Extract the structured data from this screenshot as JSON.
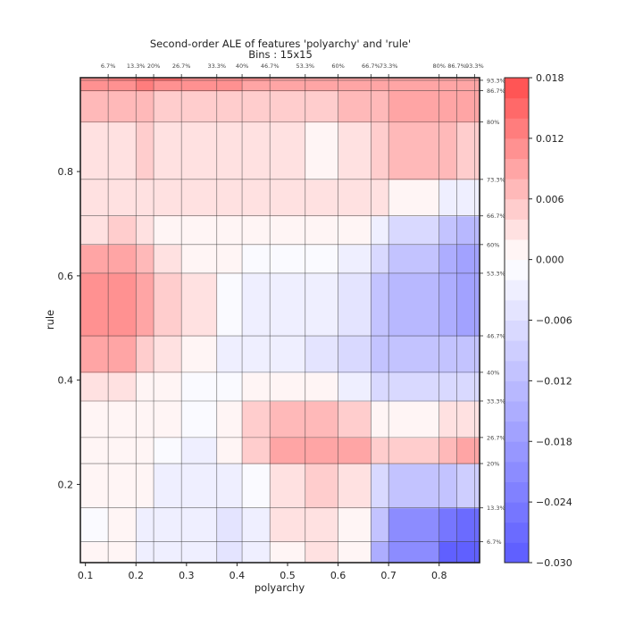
{
  "chart_data": {
    "type": "heatmap",
    "title": "Second-order ALE of features 'polyarchy' and 'rule'",
    "subtitle": "Bins : 15x15",
    "xlabel": "polyarchy",
    "ylabel": "rule",
    "xlim": [
      0.09,
      0.88
    ],
    "ylim": [
      0.05,
      0.98
    ],
    "x_ticks": [
      0.1,
      0.2,
      0.3,
      0.4,
      0.5,
      0.6,
      0.7,
      0.8
    ],
    "x_tick_labels": [
      "0.1",
      "0.2",
      "0.3",
      "0.4",
      "0.5",
      "0.6",
      "0.7",
      "0.8"
    ],
    "y_ticks": [
      0.2,
      0.4,
      0.6,
      0.8
    ],
    "y_tick_labels": [
      "0.2",
      "0.4",
      "0.6",
      "0.8"
    ],
    "x_quantiles": [
      {
        "value": 0.145,
        "label": "6.7%"
      },
      {
        "value": 0.2,
        "label": "13.3%"
      },
      {
        "value": 0.235,
        "label": "20%"
      },
      {
        "value": 0.29,
        "label": "26.7%"
      },
      {
        "value": 0.36,
        "label": "33.3%"
      },
      {
        "value": 0.41,
        "label": "40%"
      },
      {
        "value": 0.465,
        "label": "46.7%"
      },
      {
        "value": 0.535,
        "label": "53.3%"
      },
      {
        "value": 0.6,
        "label": "60%"
      },
      {
        "value": 0.665,
        "label": "66.7%"
      },
      {
        "value": 0.7,
        "label": "73.3%"
      },
      {
        "value": 0.8,
        "label": "80%"
      },
      {
        "value": 0.835,
        "label": "86.7%"
      },
      {
        "value": 0.87,
        "label": "93.3%"
      }
    ],
    "y_quantiles": [
      {
        "value": 0.09,
        "label": "6.7%"
      },
      {
        "value": 0.155,
        "label": "13.3%"
      },
      {
        "value": 0.24,
        "label": "20%"
      },
      {
        "value": 0.29,
        "label": "26.7%"
      },
      {
        "value": 0.36,
        "label": "33.3%"
      },
      {
        "value": 0.415,
        "label": "40%"
      },
      {
        "value": 0.485,
        "label": "46.7%"
      },
      {
        "value": 0.605,
        "label": "53.3%"
      },
      {
        "value": 0.66,
        "label": "60%"
      },
      {
        "value": 0.715,
        "label": "66.7%"
      },
      {
        "value": 0.785,
        "label": "73.3%"
      },
      {
        "value": 0.895,
        "label": "80%"
      },
      {
        "value": 0.955,
        "label": "86.7%"
      },
      {
        "value": 0.975,
        "label": "93.3%"
      }
    ],
    "grid_x": [
      0.09,
      0.145,
      0.2,
      0.235,
      0.29,
      0.36,
      0.41,
      0.465,
      0.535,
      0.6,
      0.665,
      0.7,
      0.8,
      0.835,
      0.87,
      0.88
    ],
    "grid_y": [
      0.05,
      0.09,
      0.155,
      0.24,
      0.29,
      0.36,
      0.415,
      0.485,
      0.605,
      0.66,
      0.715,
      0.785,
      0.895,
      0.955,
      0.975,
      0.98
    ],
    "ale_values": [
      [
        0.0,
        0.0,
        -0.002,
        -0.002,
        -0.004,
        -0.005,
        -0.004,
        0.001,
        0.002,
        0.0,
        -0.015,
        -0.022,
        -0.028,
        -0.03,
        -0.03
      ],
      [
        -0.001,
        0.0,
        -0.002,
        -0.002,
        -0.004,
        -0.005,
        -0.003,
        0.002,
        0.003,
        0.0,
        -0.012,
        -0.02,
        -0.024,
        -0.027,
        -0.027
      ],
      [
        0.0,
        0.001,
        0.0,
        -0.002,
        -0.004,
        -0.003,
        -0.001,
        0.003,
        0.004,
        0.002,
        -0.008,
        -0.01,
        -0.01,
        -0.009,
        -0.009
      ],
      [
        0.0,
        0.001,
        0.0,
        -0.001,
        -0.002,
        0.0,
        0.004,
        0.008,
        0.009,
        0.008,
        0.004,
        0.005,
        0.007,
        0.008,
        0.008
      ],
      [
        0.001,
        0.001,
        0.001,
        0.0,
        -0.001,
        0.001,
        0.004,
        0.007,
        0.007,
        0.005,
        0.001,
        0.001,
        0.002,
        0.002,
        0.002
      ],
      [
        0.002,
        0.003,
        0.001,
        0.0,
        -0.001,
        -0.001,
        0.0,
        0.001,
        0.0,
        -0.003,
        -0.007,
        -0.008,
        -0.008,
        -0.008,
        -0.008
      ],
      [
        0.008,
        0.008,
        0.005,
        0.002,
        0.0,
        -0.002,
        -0.003,
        -0.004,
        -0.005,
        -0.007,
        -0.01,
        -0.012,
        -0.012,
        -0.012,
        -0.012
      ],
      [
        0.011,
        0.012,
        0.008,
        0.004,
        0.002,
        -0.001,
        -0.002,
        -0.003,
        -0.004,
        -0.006,
        -0.011,
        -0.014,
        -0.015,
        -0.017,
        -0.017
      ],
      [
        0.008,
        0.008,
        0.006,
        0.003,
        0.001,
        0.0,
        -0.001,
        -0.001,
        -0.001,
        -0.003,
        -0.008,
        -0.012,
        -0.015,
        -0.018,
        -0.018
      ],
      [
        0.003,
        0.004,
        0.003,
        0.001,
        0.001,
        0.001,
        0.001,
        0.001,
        0.0,
        0.0,
        -0.003,
        -0.007,
        -0.011,
        -0.014,
        -0.014
      ],
      [
        0.003,
        0.003,
        0.003,
        0.002,
        0.002,
        0.002,
        0.002,
        0.002,
        0.002,
        0.002,
        0.002,
        0.001,
        -0.002,
        -0.004,
        -0.004
      ],
      [
        0.003,
        0.003,
        0.004,
        0.003,
        0.003,
        0.003,
        0.003,
        0.003,
        0.0,
        0.003,
        0.005,
        0.006,
        0.006,
        0.005,
        0.005
      ],
      [
        0.006,
        0.007,
        0.006,
        0.004,
        0.004,
        0.004,
        0.005,
        0.005,
        0.004,
        0.006,
        0.007,
        0.009,
        0.009,
        0.008,
        0.008
      ],
      [
        0.011,
        0.012,
        0.013,
        0.012,
        0.01,
        0.01,
        0.009,
        0.008,
        0.008,
        0.008,
        0.008,
        0.009,
        0.009,
        0.008,
        0.008
      ],
      [
        0.012,
        0.013,
        0.015,
        0.015,
        0.012,
        0.011,
        0.01,
        0.009,
        0.009,
        0.008,
        0.008,
        0.009,
        0.009,
        0.008,
        0.008
      ]
    ],
    "colorbar": {
      "min": -0.03,
      "max": 0.018,
      "ticks": [
        0.018,
        0.012,
        0.006,
        0.0,
        -0.006,
        -0.012,
        -0.018,
        -0.024,
        -0.03
      ],
      "tick_labels": [
        "0.018",
        "0.012",
        "0.006",
        "0.000",
        "−0.006",
        "−0.012",
        "−0.018",
        "−0.024",
        "−0.030"
      ],
      "colormap": "bwr",
      "levels": 24
    },
    "colors": {
      "low": "#5b5bff",
      "mid": "#ffffff",
      "high": "#ff4b4b",
      "grid": "#333333"
    },
    "grid": true
  }
}
